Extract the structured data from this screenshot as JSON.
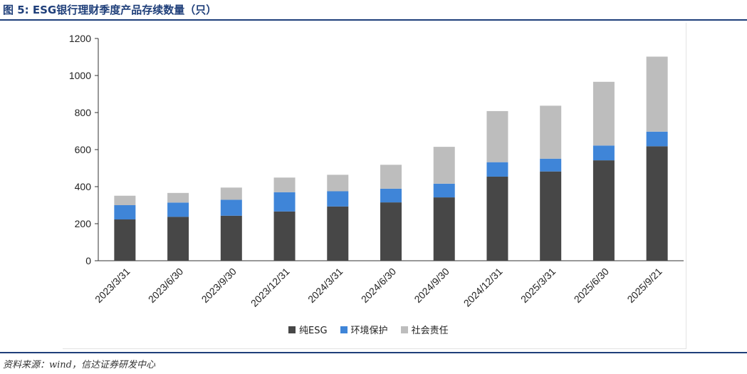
{
  "header": {
    "title": "图 5:  ESG银行理财季度产品存续数量（只）"
  },
  "footer": {
    "source": "资料来源：wind，信达证券研发中心"
  },
  "chart_data": {
    "type": "bar",
    "stacked": true,
    "categories": [
      "2023/3/31",
      "2023/6/30",
      "2023/9/30",
      "2023/12/31",
      "2024/3/31",
      "2024/6/30",
      "2024/9/30",
      "2024/12/31",
      "2025/3/31",
      "2025/6/30",
      "2025/9/21"
    ],
    "series": [
      {
        "name": "纯ESG",
        "color": "#474747",
        "values": [
          223,
          237,
          243,
          266,
          293,
          315,
          342,
          454,
          482,
          542,
          618
        ]
      },
      {
        "name": "环境保护",
        "color": "#3f85d8",
        "values": [
          77,
          77,
          86,
          104,
          82,
          74,
          74,
          78,
          69,
          80,
          79
        ]
      },
      {
        "name": "社会责任",
        "color": "#bdbdbd",
        "values": [
          51,
          52,
          66,
          79,
          89,
          129,
          199,
          276,
          286,
          344,
          405
        ]
      }
    ],
    "yticks": [
      "0",
      "200",
      "400",
      "600",
      "800",
      "1000",
      "1200"
    ],
    "ylim": [
      0,
      1200
    ],
    "grid": false,
    "legend_position": "bottom-center"
  }
}
